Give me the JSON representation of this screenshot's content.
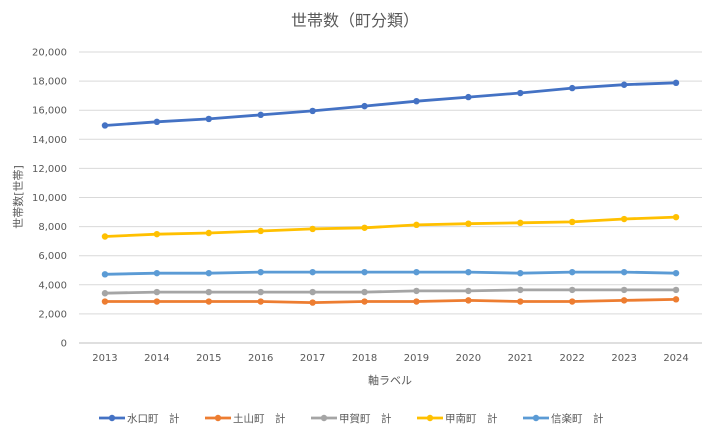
{
  "chart_data": {
    "type": "line",
    "title": "世帯数（町分類）",
    "xlabel": "軸ラベル",
    "ylabel": "世帯数[世帯]",
    "categories": [
      "2013",
      "2014",
      "2015",
      "2016",
      "2017",
      "2018",
      "2019",
      "2020",
      "2021",
      "2022",
      "2023",
      "2024"
    ],
    "ylim": [
      0,
      20000
    ],
    "yticks": [
      0,
      2000,
      4000,
      6000,
      8000,
      10000,
      12000,
      14000,
      16000,
      18000,
      20000
    ],
    "ytick_labels": [
      "0",
      "2,000",
      "4,000",
      "6,000",
      "8,000",
      "10,000",
      "12,000",
      "14,000",
      "16,000",
      "18,000",
      "20,000"
    ],
    "grid": true,
    "legend_position": "bottom",
    "series": [
      {
        "name": "水口町　計",
        "color": "#4472c4",
        "values": [
          14950,
          15200,
          15400,
          15680,
          15950,
          16280,
          16620,
          16900,
          17180,
          17520,
          17750,
          17880
        ]
      },
      {
        "name": "土山町　計",
        "color": "#ed7d31",
        "values": [
          2850,
          2850,
          2850,
          2850,
          2780,
          2850,
          2850,
          2930,
          2850,
          2850,
          2930,
          3000
        ]
      },
      {
        "name": "甲賀町　計",
        "color": "#a5a5a5",
        "values": [
          3420,
          3500,
          3500,
          3500,
          3500,
          3500,
          3580,
          3580,
          3650,
          3650,
          3650,
          3650
        ]
      },
      {
        "name": "甲南町　計",
        "color": "#ffc000",
        "values": [
          7320,
          7480,
          7560,
          7700,
          7840,
          7920,
          8120,
          8200,
          8260,
          8320,
          8520,
          8650
        ]
      },
      {
        "name": "信楽町　計",
        "color": "#5b9bd5",
        "values": [
          4720,
          4800,
          4800,
          4870,
          4870,
          4870,
          4870,
          4870,
          4800,
          4870,
          4870,
          4800
        ]
      }
    ]
  }
}
